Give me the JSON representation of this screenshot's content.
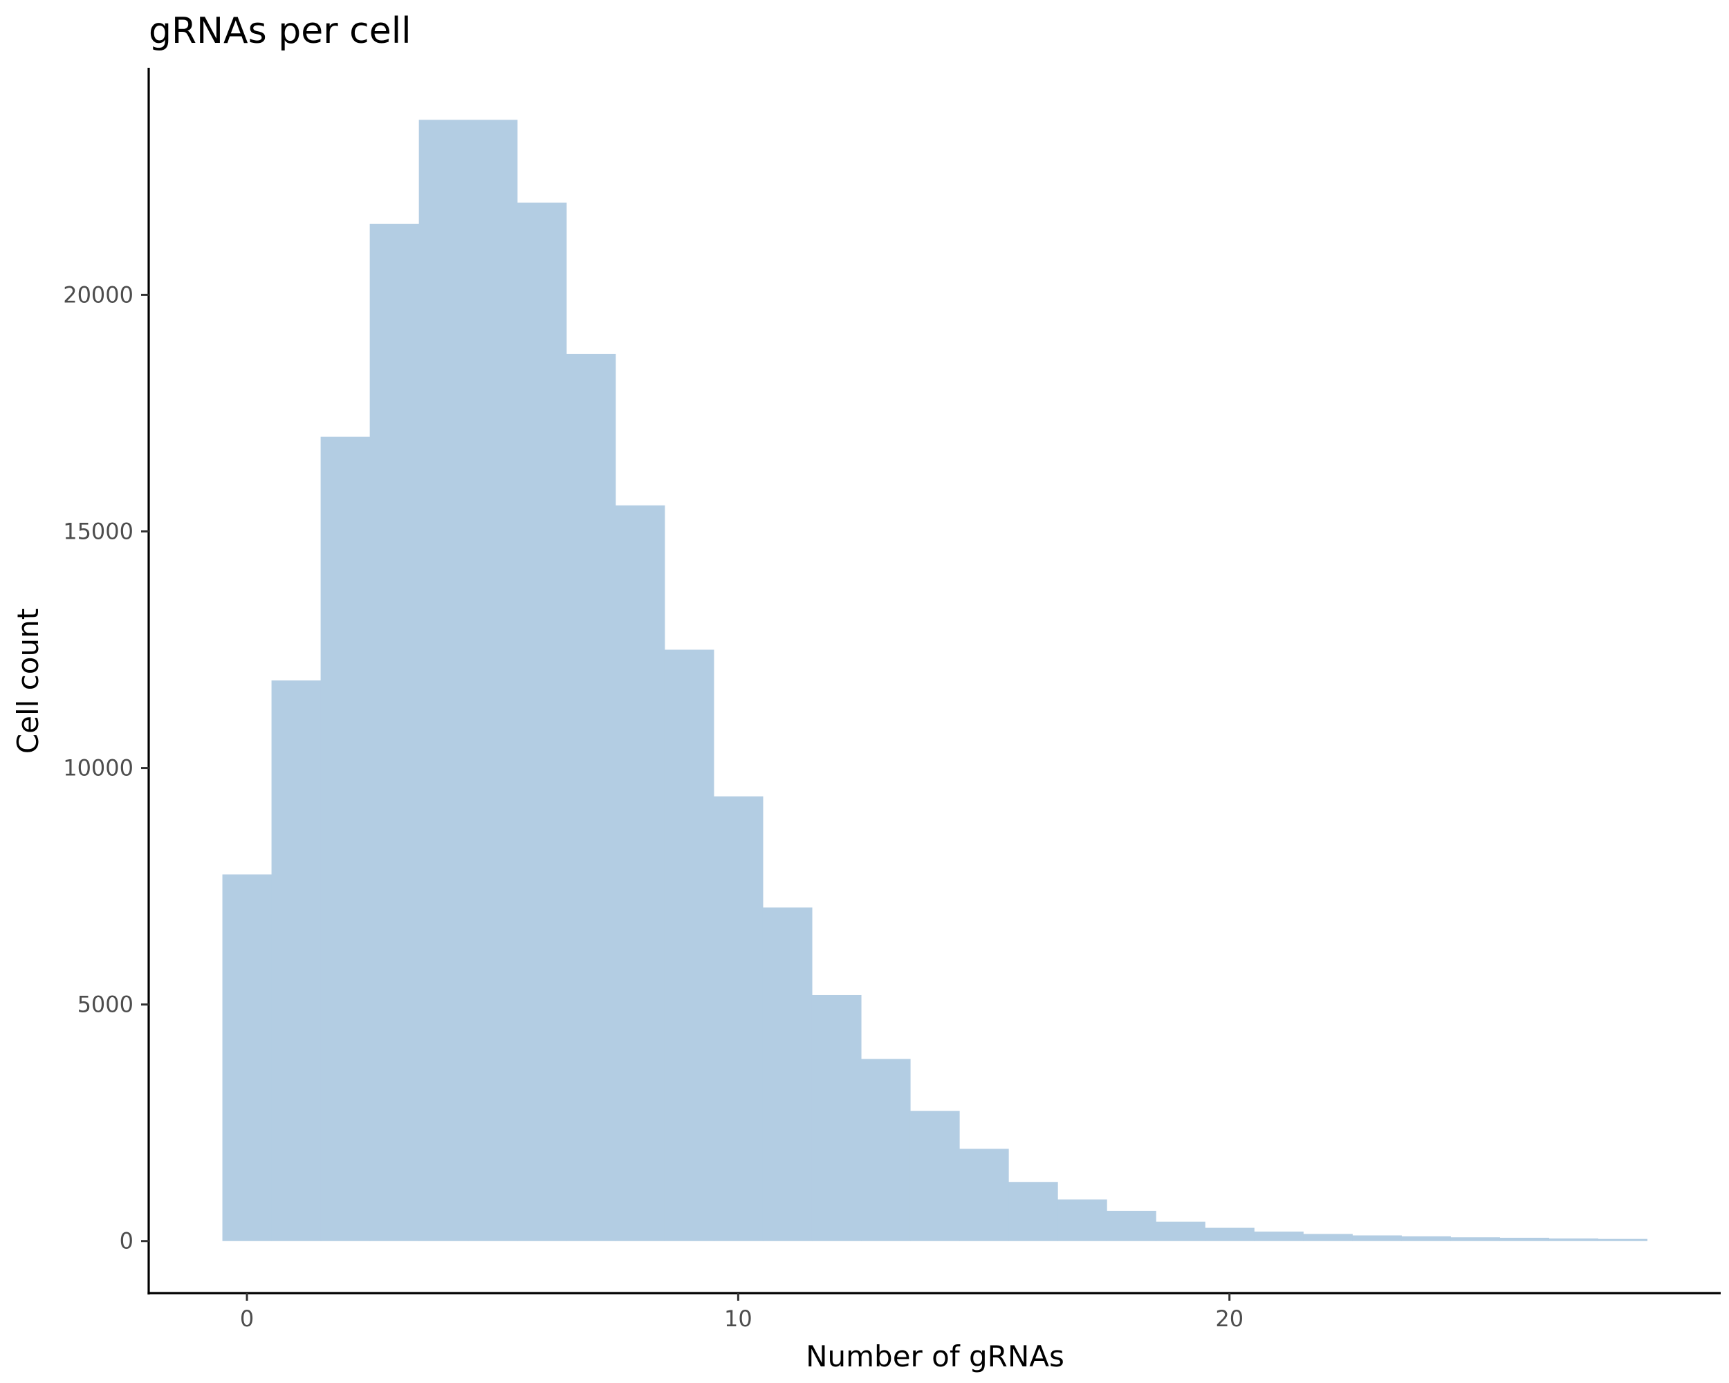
{
  "chart_data": {
    "type": "bar",
    "title": "gRNAs per cell",
    "xlabel": "Number of gRNAs",
    "ylabel": "Cell count",
    "x": [
      0,
      1,
      2,
      3,
      4,
      5,
      6,
      7,
      8,
      9,
      10,
      11,
      12,
      13,
      14,
      15,
      16,
      17,
      18,
      19,
      20,
      21,
      22,
      23,
      24,
      25,
      26,
      27,
      28
    ],
    "values": [
      7750,
      11850,
      17000,
      21500,
      23700,
      23700,
      21950,
      18750,
      15550,
      12500,
      9400,
      7050,
      5200,
      3850,
      2750,
      1950,
      1250,
      880,
      640,
      410,
      280,
      200,
      150,
      120,
      100,
      80,
      70,
      55,
      45
    ],
    "xlim": [
      -2.0,
      30.0
    ],
    "ylim": [
      -1100,
      24800
    ],
    "xticks": [
      0,
      10,
      20
    ],
    "yticks": [
      0,
      5000,
      10000,
      15000,
      20000
    ],
    "grid": false,
    "legend": "none",
    "bar_color": "#b3cde3"
  }
}
